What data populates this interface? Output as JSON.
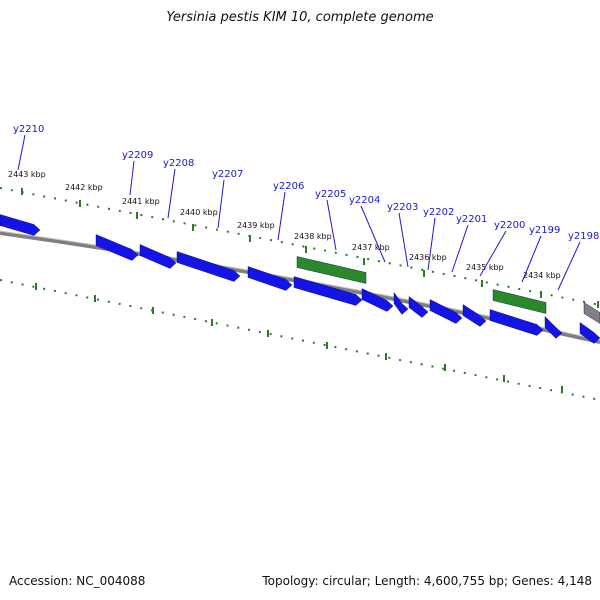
{
  "title": "Yersinia pestis KIM 10, complete genome",
  "accession_text": "Accession: NC_004088",
  "summary_text": "Topology: circular; Length: 4,600,755 bp; Genes: 4,148",
  "colors": {
    "gene_blue": "#1414e6",
    "gene_green": "#2a8a2a",
    "backbone": "#808080",
    "tick_green": "#2a7a2a",
    "label_blue": "#1a1acc"
  },
  "scale_labels": [
    "2443 kbp",
    "2442 kbp",
    "2441 kbp",
    "2440 kbp",
    "2439 kbp",
    "2438 kbp",
    "2437 kbp",
    "2436 kbp",
    "2435 kbp",
    "2434 kbp"
  ],
  "gene_labels": [
    "y2210",
    "y2209",
    "y2208",
    "y2207",
    "y2206",
    "y2205",
    "y2204",
    "y2203",
    "y2202",
    "y2201",
    "y2200",
    "y2199",
    "y2198"
  ]
}
